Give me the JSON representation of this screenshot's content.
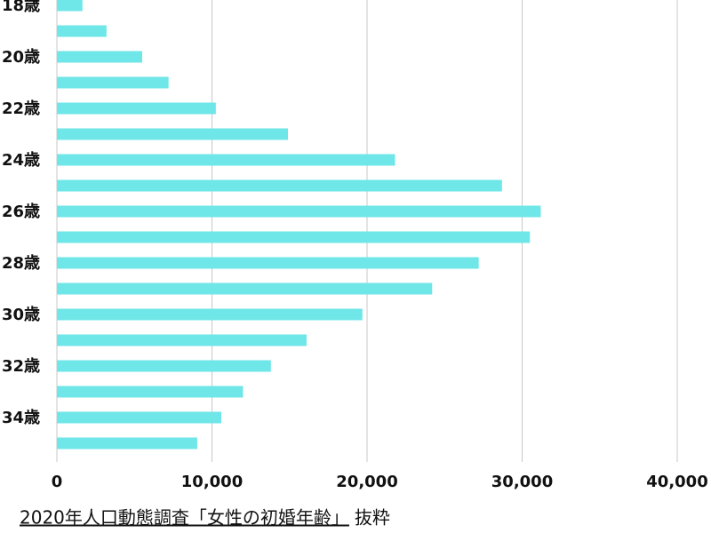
{
  "chart_data": {
    "type": "barh",
    "title": "2020年人口動態調査「女性の初婚年齢」",
    "title_suffix": "抜粋",
    "categories": [
      "18歳",
      null,
      "20歳",
      null,
      "22歳",
      null,
      "24歳",
      null,
      "26歳",
      null,
      "28歳",
      null,
      "30歳",
      null,
      "32歳",
      null,
      "34歳",
      null
    ],
    "values": [
      1650,
      3200,
      5500,
      7200,
      10250,
      14900,
      21800,
      28700,
      31200,
      30500,
      27200,
      24200,
      19700,
      16100,
      13800,
      12000,
      10600,
      9050
    ],
    "color": "#6fe6e8",
    "xlim": [
      0,
      40000
    ],
    "xticks": [
      0,
      {
        "value": 10000,
        "label": "10,000"
      },
      {
        "value": 20000,
        "label": "20,000"
      },
      {
        "value": 30000,
        "label": "30,000"
      },
      {
        "value": 40000,
        "label": "40,000"
      }
    ],
    "grid": true
  }
}
